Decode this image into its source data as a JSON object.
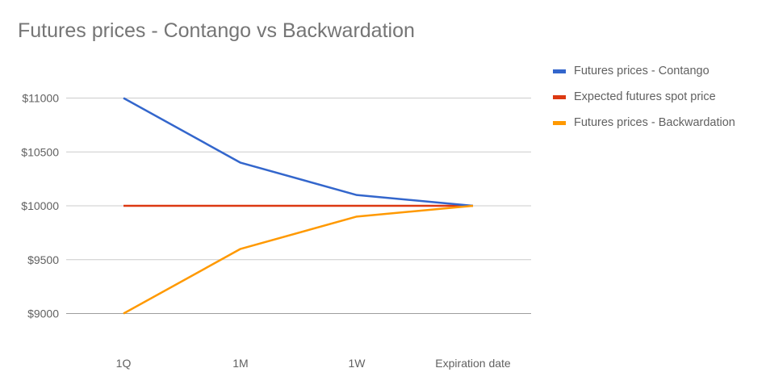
{
  "chart_data": {
    "type": "line",
    "title": "Futures prices - Contango vs Backwardation",
    "xlabel": "",
    "ylabel": "",
    "categories": [
      "1Q",
      "1M",
      "1W",
      "Expiration date"
    ],
    "ylim": [
      8500,
      11500
    ],
    "yticks": [
      9000,
      9500,
      10000,
      10500,
      11000
    ],
    "ytick_labels": [
      "$9000",
      "$9500",
      "$10000",
      "$10500",
      "$11000"
    ],
    "grid": true,
    "legend_position": "right",
    "series": [
      {
        "name": "Futures prices - Contango",
        "color": "#3366cc",
        "values": [
          11000,
          10400,
          10100,
          10000
        ]
      },
      {
        "name": "Expected futures spot price",
        "color": "#dc3912",
        "values": [
          10000,
          10000,
          10000,
          10000
        ]
      },
      {
        "name": "Futures prices - Backwardation",
        "color": "#ff9900",
        "values": [
          9000,
          9600,
          9900,
          10000
        ]
      }
    ]
  }
}
